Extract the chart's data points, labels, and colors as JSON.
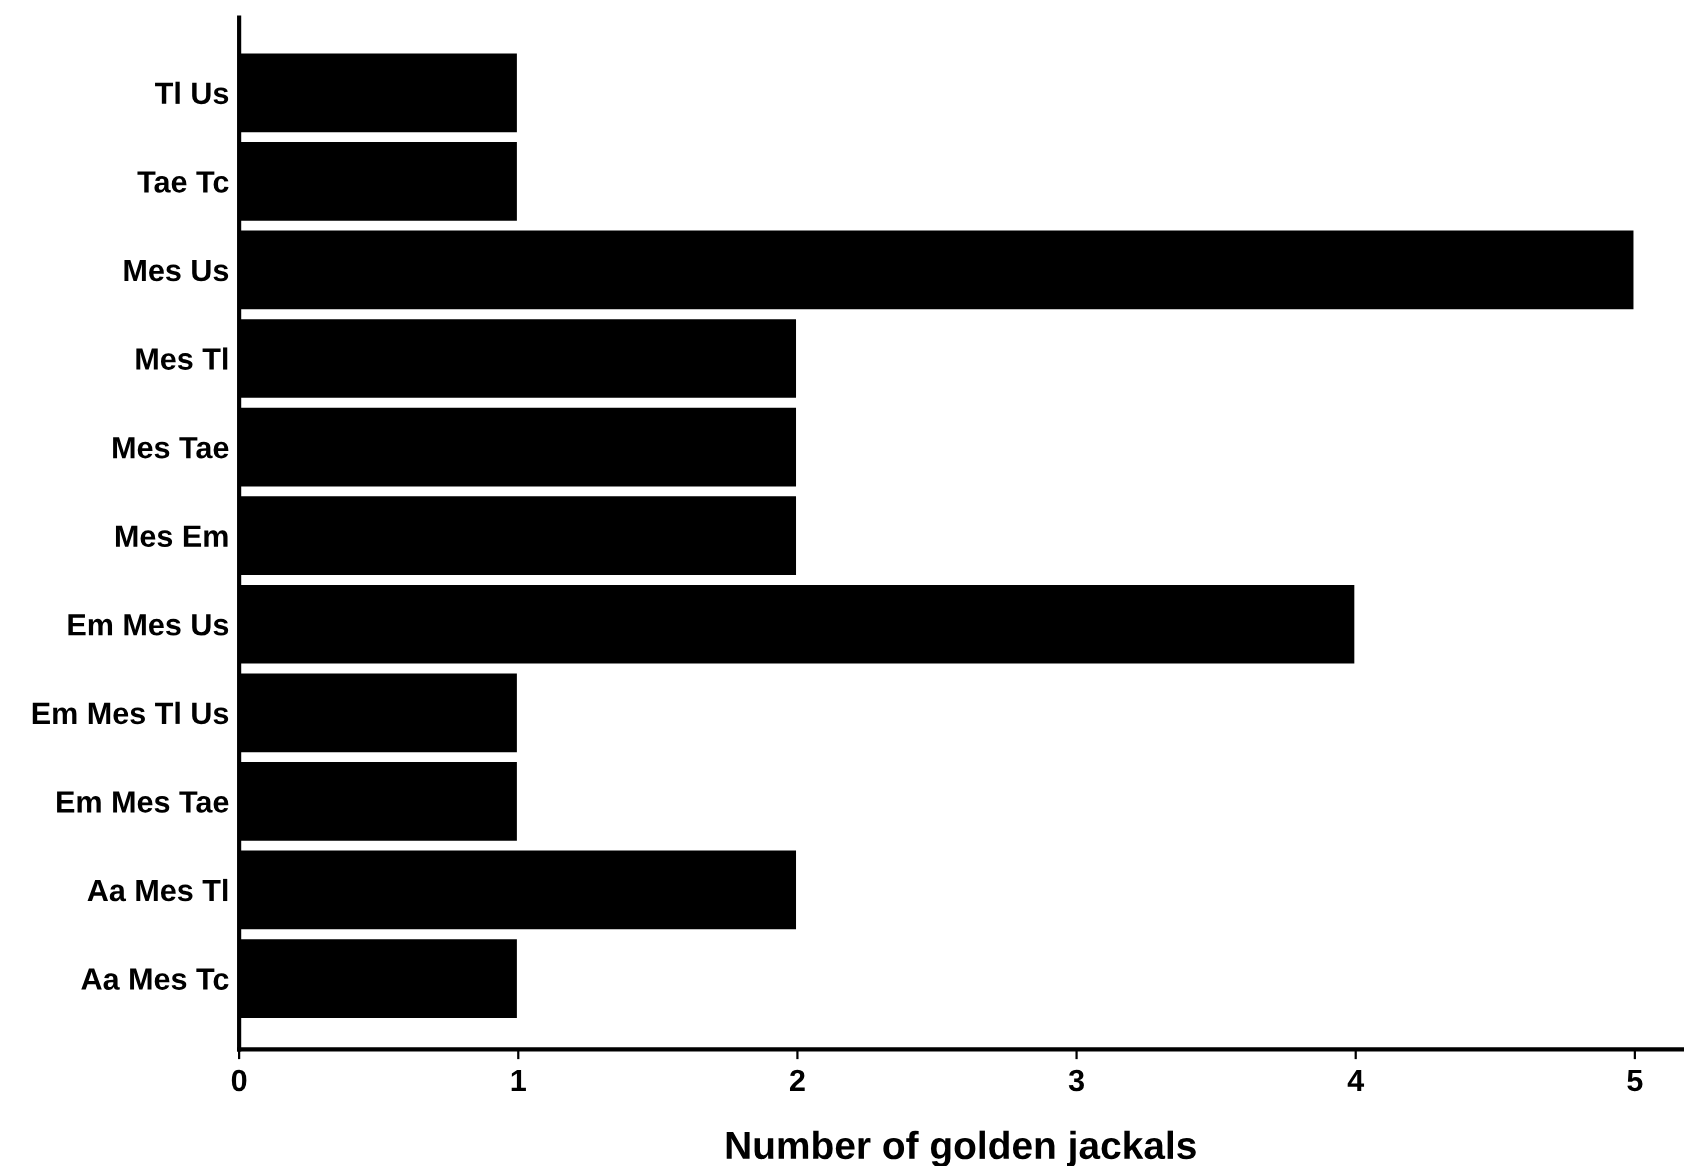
{
  "chart_data": {
    "type": "bar",
    "orientation": "horizontal",
    "xlabel": "Number of golden jackals",
    "categories": [
      "Tl Us",
      "Tae Tc",
      "Mes Us",
      "Mes Tl",
      "Mes Tae",
      "Mes Em",
      "Em Mes Us",
      "Em Mes Tl Us",
      "Em Mes Tae",
      "Aa Mes Tl",
      "Aa Mes Tc"
    ],
    "values": [
      1,
      1,
      5,
      2,
      2,
      2,
      4,
      1,
      1,
      2,
      1
    ],
    "color": "#000000",
    "xlim": [
      0,
      5.17
    ],
    "xticks": [
      0,
      1,
      2,
      3,
      4,
      5
    ],
    "grid": false,
    "legend": false
  }
}
